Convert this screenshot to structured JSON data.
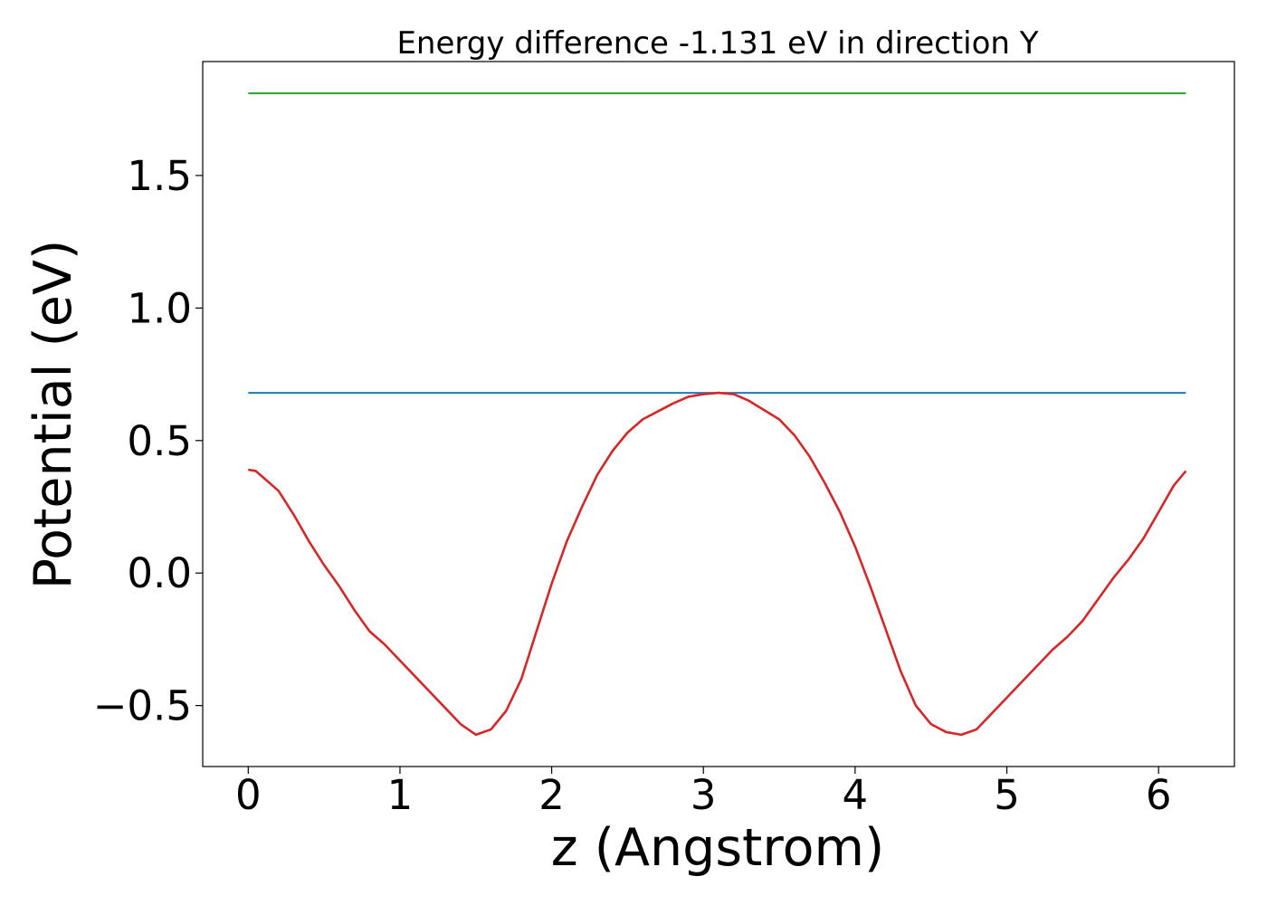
{
  "chart_data": {
    "type": "line",
    "title": "Energy difference -1.131 eV in direction Y",
    "xlabel": "z (Angstrom)",
    "ylabel": "Potential (eV)",
    "xlim": [
      -0.3,
      6.5
    ],
    "ylim": [
      -0.73,
      1.93
    ],
    "xticks": [
      0,
      1,
      2,
      3,
      4,
      5,
      6
    ],
    "xtick_labels": [
      "0",
      "1",
      "2",
      "3",
      "4",
      "5",
      "6"
    ],
    "yticks": [
      -0.5,
      0.0,
      0.5,
      1.0,
      1.5
    ],
    "ytick_labels": [
      "−0.5",
      "0.0",
      "0.5",
      "1.0",
      "1.5"
    ],
    "grid": false,
    "series": [
      {
        "color": "#2ca02c",
        "x": [
          0,
          6.18
        ],
        "y": [
          1.81,
          1.81
        ]
      },
      {
        "color": "#1f77b4",
        "x": [
          0,
          6.18
        ],
        "y": [
          0.68,
          0.68
        ]
      },
      {
        "color": "#d62728",
        "x": [
          0.0,
          0.05,
          0.1,
          0.2,
          0.3,
          0.4,
          0.5,
          0.6,
          0.7,
          0.8,
          0.9,
          1.0,
          1.1,
          1.2,
          1.3,
          1.4,
          1.5,
          1.6,
          1.7,
          1.8,
          1.9,
          2.0,
          2.1,
          2.2,
          2.3,
          2.4,
          2.5,
          2.6,
          2.7,
          2.8,
          2.9,
          3.0,
          3.1,
          3.2,
          3.3,
          3.4,
          3.5,
          3.6,
          3.7,
          3.8,
          3.9,
          4.0,
          4.1,
          4.2,
          4.3,
          4.4,
          4.5,
          4.6,
          4.7,
          4.8,
          4.9,
          5.0,
          5.1,
          5.2,
          5.3,
          5.4,
          5.5,
          5.6,
          5.7,
          5.8,
          5.9,
          6.0,
          6.1,
          6.18
        ],
        "y": [
          0.39,
          0.385,
          0.36,
          0.31,
          0.22,
          0.12,
          0.03,
          -0.05,
          -0.14,
          -0.22,
          -0.27,
          -0.33,
          -0.39,
          -0.45,
          -0.51,
          -0.57,
          -0.61,
          -0.59,
          -0.52,
          -0.4,
          -0.22,
          -0.04,
          0.12,
          0.25,
          0.37,
          0.46,
          0.53,
          0.58,
          0.61,
          0.64,
          0.665,
          0.675,
          0.68,
          0.675,
          0.65,
          0.615,
          0.58,
          0.52,
          0.44,
          0.34,
          0.23,
          0.1,
          -0.05,
          -0.21,
          -0.37,
          -0.5,
          -0.57,
          -0.6,
          -0.61,
          -0.59,
          -0.53,
          -0.47,
          -0.41,
          -0.35,
          -0.29,
          -0.24,
          -0.18,
          -0.1,
          -0.02,
          0.05,
          0.13,
          0.23,
          0.33,
          0.385
        ]
      }
    ]
  }
}
